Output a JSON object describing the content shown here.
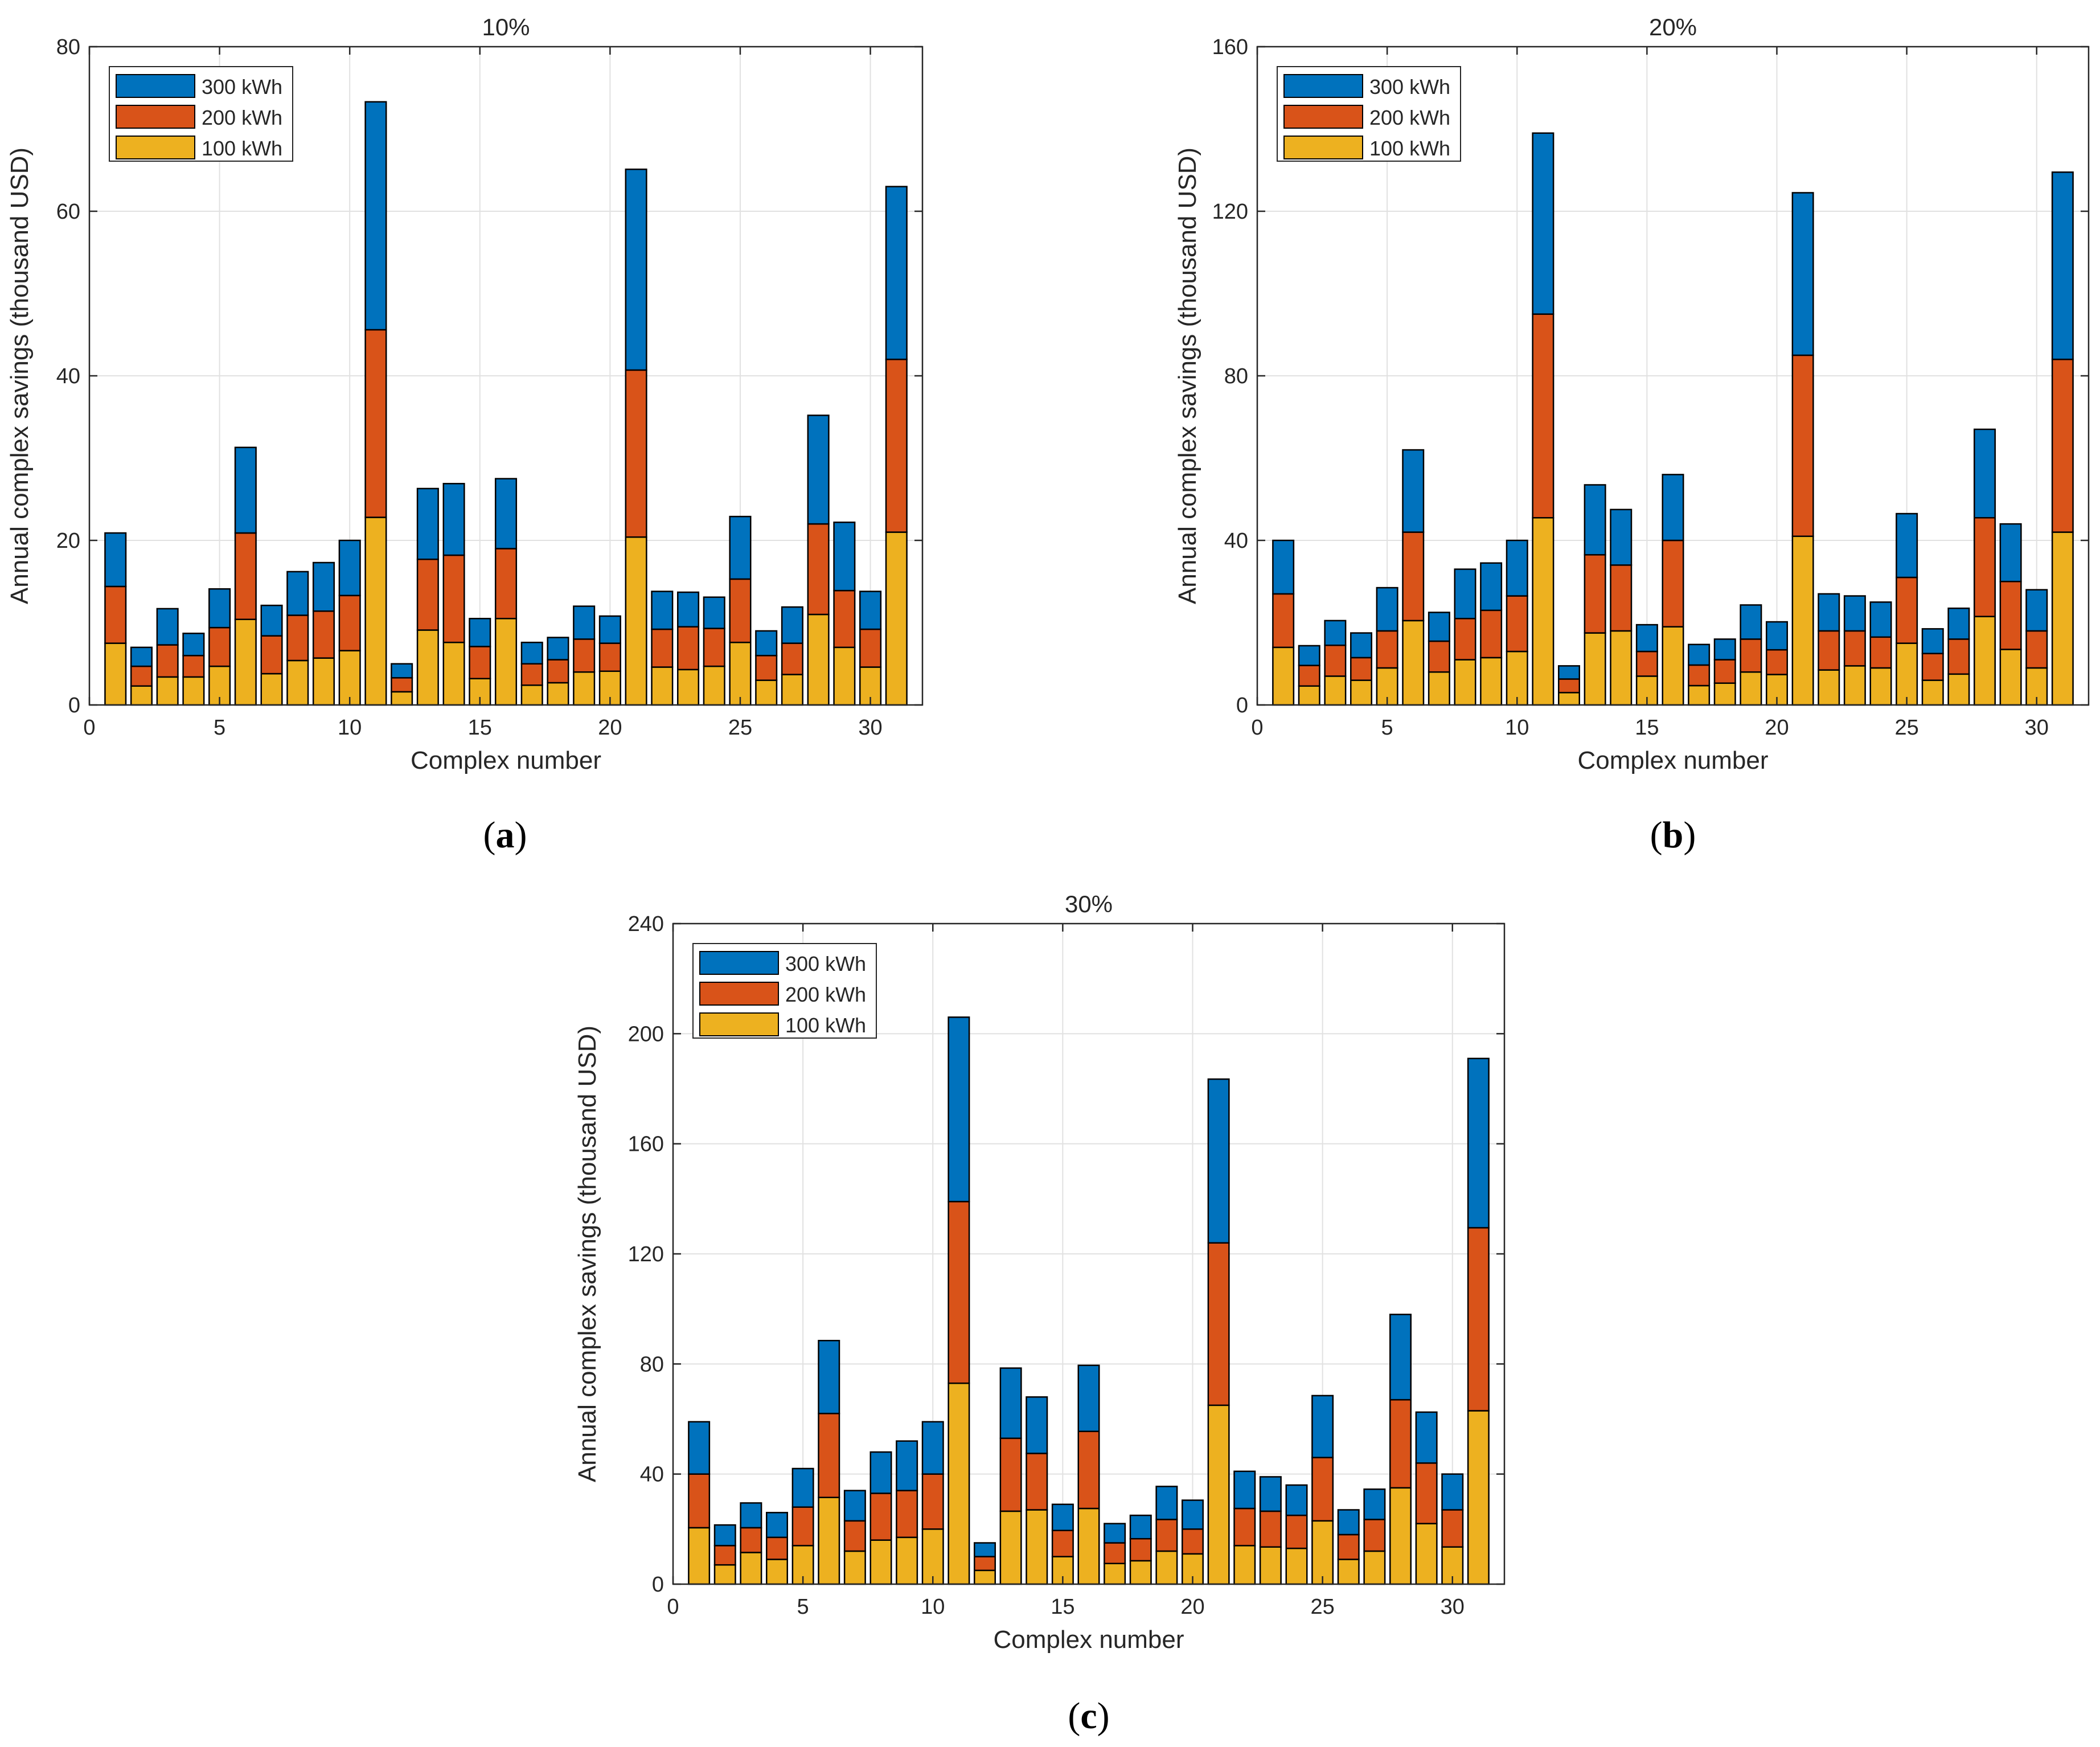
{
  "panel_labels": [
    "a",
    "b",
    "c"
  ],
  "colors": {
    "s300": "#0072BD",
    "s200": "#D95319",
    "s100": "#EDB120"
  },
  "chart_data": [
    {
      "type": "bar",
      "stacked": true,
      "title": "10%",
      "xlabel": "Complex number",
      "ylabel": "Annual complex savings (thousand USD)",
      "xlim": [
        0,
        32
      ],
      "ylim": [
        0,
        80
      ],
      "xticks": [
        "0",
        "5",
        "10",
        "15",
        "20",
        "25",
        "30"
      ],
      "yticks": [
        "0",
        "20",
        "40",
        "60",
        "80"
      ],
      "legend": "top-left",
      "grid": true,
      "x": [
        1,
        2,
        3,
        4,
        5,
        6,
        7,
        8,
        9,
        10,
        11,
        12,
        13,
        14,
        15,
        16,
        17,
        18,
        19,
        20,
        21,
        22,
        23,
        24,
        25,
        26,
        27,
        28,
        29,
        30,
        31
      ],
      "series": [
        {
          "name": "100 kWh",
          "values": [
            7.5,
            2.3,
            3.4,
            3.4,
            4.7,
            10.4,
            3.8,
            5.4,
            5.7,
            6.6,
            22.8,
            1.6,
            9.1,
            7.6,
            3.2,
            10.5,
            2.4,
            2.7,
            4,
            4.1,
            20.4,
            4.6,
            4.3,
            4.7,
            7.6,
            3,
            3.7,
            11,
            7,
            4.6,
            21
          ]
        },
        {
          "name": "200 kWh",
          "values": [
            6.9,
            2.4,
            3.9,
            2.6,
            4.7,
            10.5,
            4.6,
            5.5,
            5.7,
            6.7,
            22.8,
            1.7,
            8.6,
            10.6,
            3.9,
            8.5,
            2.6,
            2.8,
            4,
            3.4,
            20.3,
            4.6,
            5.2,
            4.6,
            7.7,
            3,
            3.8,
            11,
            6.9,
            4.6,
            21
          ]
        },
        {
          "name": "300 kWh",
          "values": [
            6.5,
            2.3,
            4.4,
            2.7,
            4.7,
            10.4,
            3.7,
            5.3,
            5.9,
            6.7,
            27.7,
            1.7,
            8.6,
            8.7,
            3.4,
            8.5,
            2.6,
            2.7,
            4,
            3.3,
            24.4,
            4.6,
            4.2,
            3.8,
            7.6,
            3,
            4.4,
            13.2,
            8.3,
            4.6,
            21
          ]
        }
      ]
    },
    {
      "type": "bar",
      "stacked": true,
      "title": "20%",
      "xlabel": "Complex number",
      "ylabel": "Annual complex savings (thousand USD)",
      "xlim": [
        0,
        32
      ],
      "ylim": [
        0,
        160
      ],
      "xticks": [
        "0",
        "5",
        "10",
        "15",
        "20",
        "25",
        "30"
      ],
      "yticks": [
        "0",
        "40",
        "80",
        "120",
        "160"
      ],
      "legend": "top-left",
      "grid": true,
      "x": [
        1,
        2,
        3,
        4,
        5,
        6,
        7,
        8,
        9,
        10,
        11,
        12,
        13,
        14,
        15,
        16,
        17,
        18,
        19,
        20,
        21,
        22,
        23,
        24,
        25,
        26,
        27,
        28,
        29,
        30,
        31
      ],
      "series": [
        {
          "name": "100 kWh",
          "values": [
            14,
            4.6,
            7,
            6,
            9,
            20.5,
            8,
            11,
            11.5,
            13,
            45.5,
            3,
            17.5,
            18,
            7,
            19,
            4.7,
            5.3,
            8,
            7.4,
            41,
            8.5,
            9.5,
            9,
            15,
            6,
            7.5,
            21.5,
            13.5,
            9,
            42
          ]
        },
        {
          "name": "200 kWh",
          "values": [
            13,
            5,
            7.5,
            5.5,
            9,
            21.5,
            7.5,
            10,
            11.5,
            13.5,
            49.5,
            3.3,
            19,
            16,
            6,
            21,
            5,
            5.7,
            8,
            6,
            44,
            9.5,
            8.5,
            7.5,
            16,
            6.5,
            8.5,
            24,
            16.5,
            9,
            42
          ]
        },
        {
          "name": "300 kWh",
          "values": [
            13,
            4.8,
            6,
            6,
            10.5,
            20,
            7,
            12,
            11.5,
            13.5,
            44,
            3.2,
            17,
            13.5,
            6.5,
            16,
            5,
            5,
            8.3,
            6.8,
            39.5,
            9,
            8.5,
            8.5,
            15.5,
            6,
            7.5,
            21.5,
            14,
            10,
            45.5
          ]
        }
      ]
    },
    {
      "type": "bar",
      "stacked": true,
      "title": "30%",
      "xlabel": "Complex number",
      "ylabel": "Annual complex savings (thousand USD)",
      "xlim": [
        0,
        32
      ],
      "ylim": [
        0,
        240
      ],
      "xticks": [
        "0",
        "5",
        "10",
        "15",
        "20",
        "25",
        "30"
      ],
      "yticks": [
        "0",
        "40",
        "80",
        "120",
        "160",
        "200",
        "240"
      ],
      "legend": "top-left",
      "grid": true,
      "x": [
        1,
        2,
        3,
        4,
        5,
        6,
        7,
        8,
        9,
        10,
        11,
        12,
        13,
        14,
        15,
        16,
        17,
        18,
        19,
        20,
        21,
        22,
        23,
        24,
        25,
        26,
        27,
        28,
        29,
        30,
        31
      ],
      "series": [
        {
          "name": "100 kWh",
          "values": [
            20.5,
            7,
            11.5,
            9,
            14,
            31.5,
            12,
            16,
            17,
            20,
            73,
            5,
            26.5,
            27,
            10,
            27.5,
            7.5,
            8.5,
            12,
            11,
            65,
            14,
            13.5,
            13,
            23,
            9,
            12,
            35,
            22,
            13.5,
            63
          ]
        },
        {
          "name": "200 kWh",
          "values": [
            19.5,
            7,
            9,
            8,
            14,
            30.5,
            11,
            17,
            17,
            20,
            66,
            5,
            26.5,
            20.5,
            9.5,
            28,
            7.5,
            8,
            11.5,
            9,
            59,
            13.5,
            13,
            12,
            23,
            9,
            11.5,
            32,
            22,
            13.5,
            66.5
          ]
        },
        {
          "name": "300 kWh",
          "values": [
            19,
            7.5,
            9,
            9,
            14,
            26.5,
            11,
            15,
            18,
            19,
            67,
            5,
            25.5,
            20.5,
            9.5,
            24,
            7,
            8.5,
            12,
            10.5,
            59.5,
            13.5,
            12.5,
            11,
            22.5,
            9,
            11,
            31,
            18.5,
            13,
            61.5
          ]
        }
      ]
    }
  ]
}
